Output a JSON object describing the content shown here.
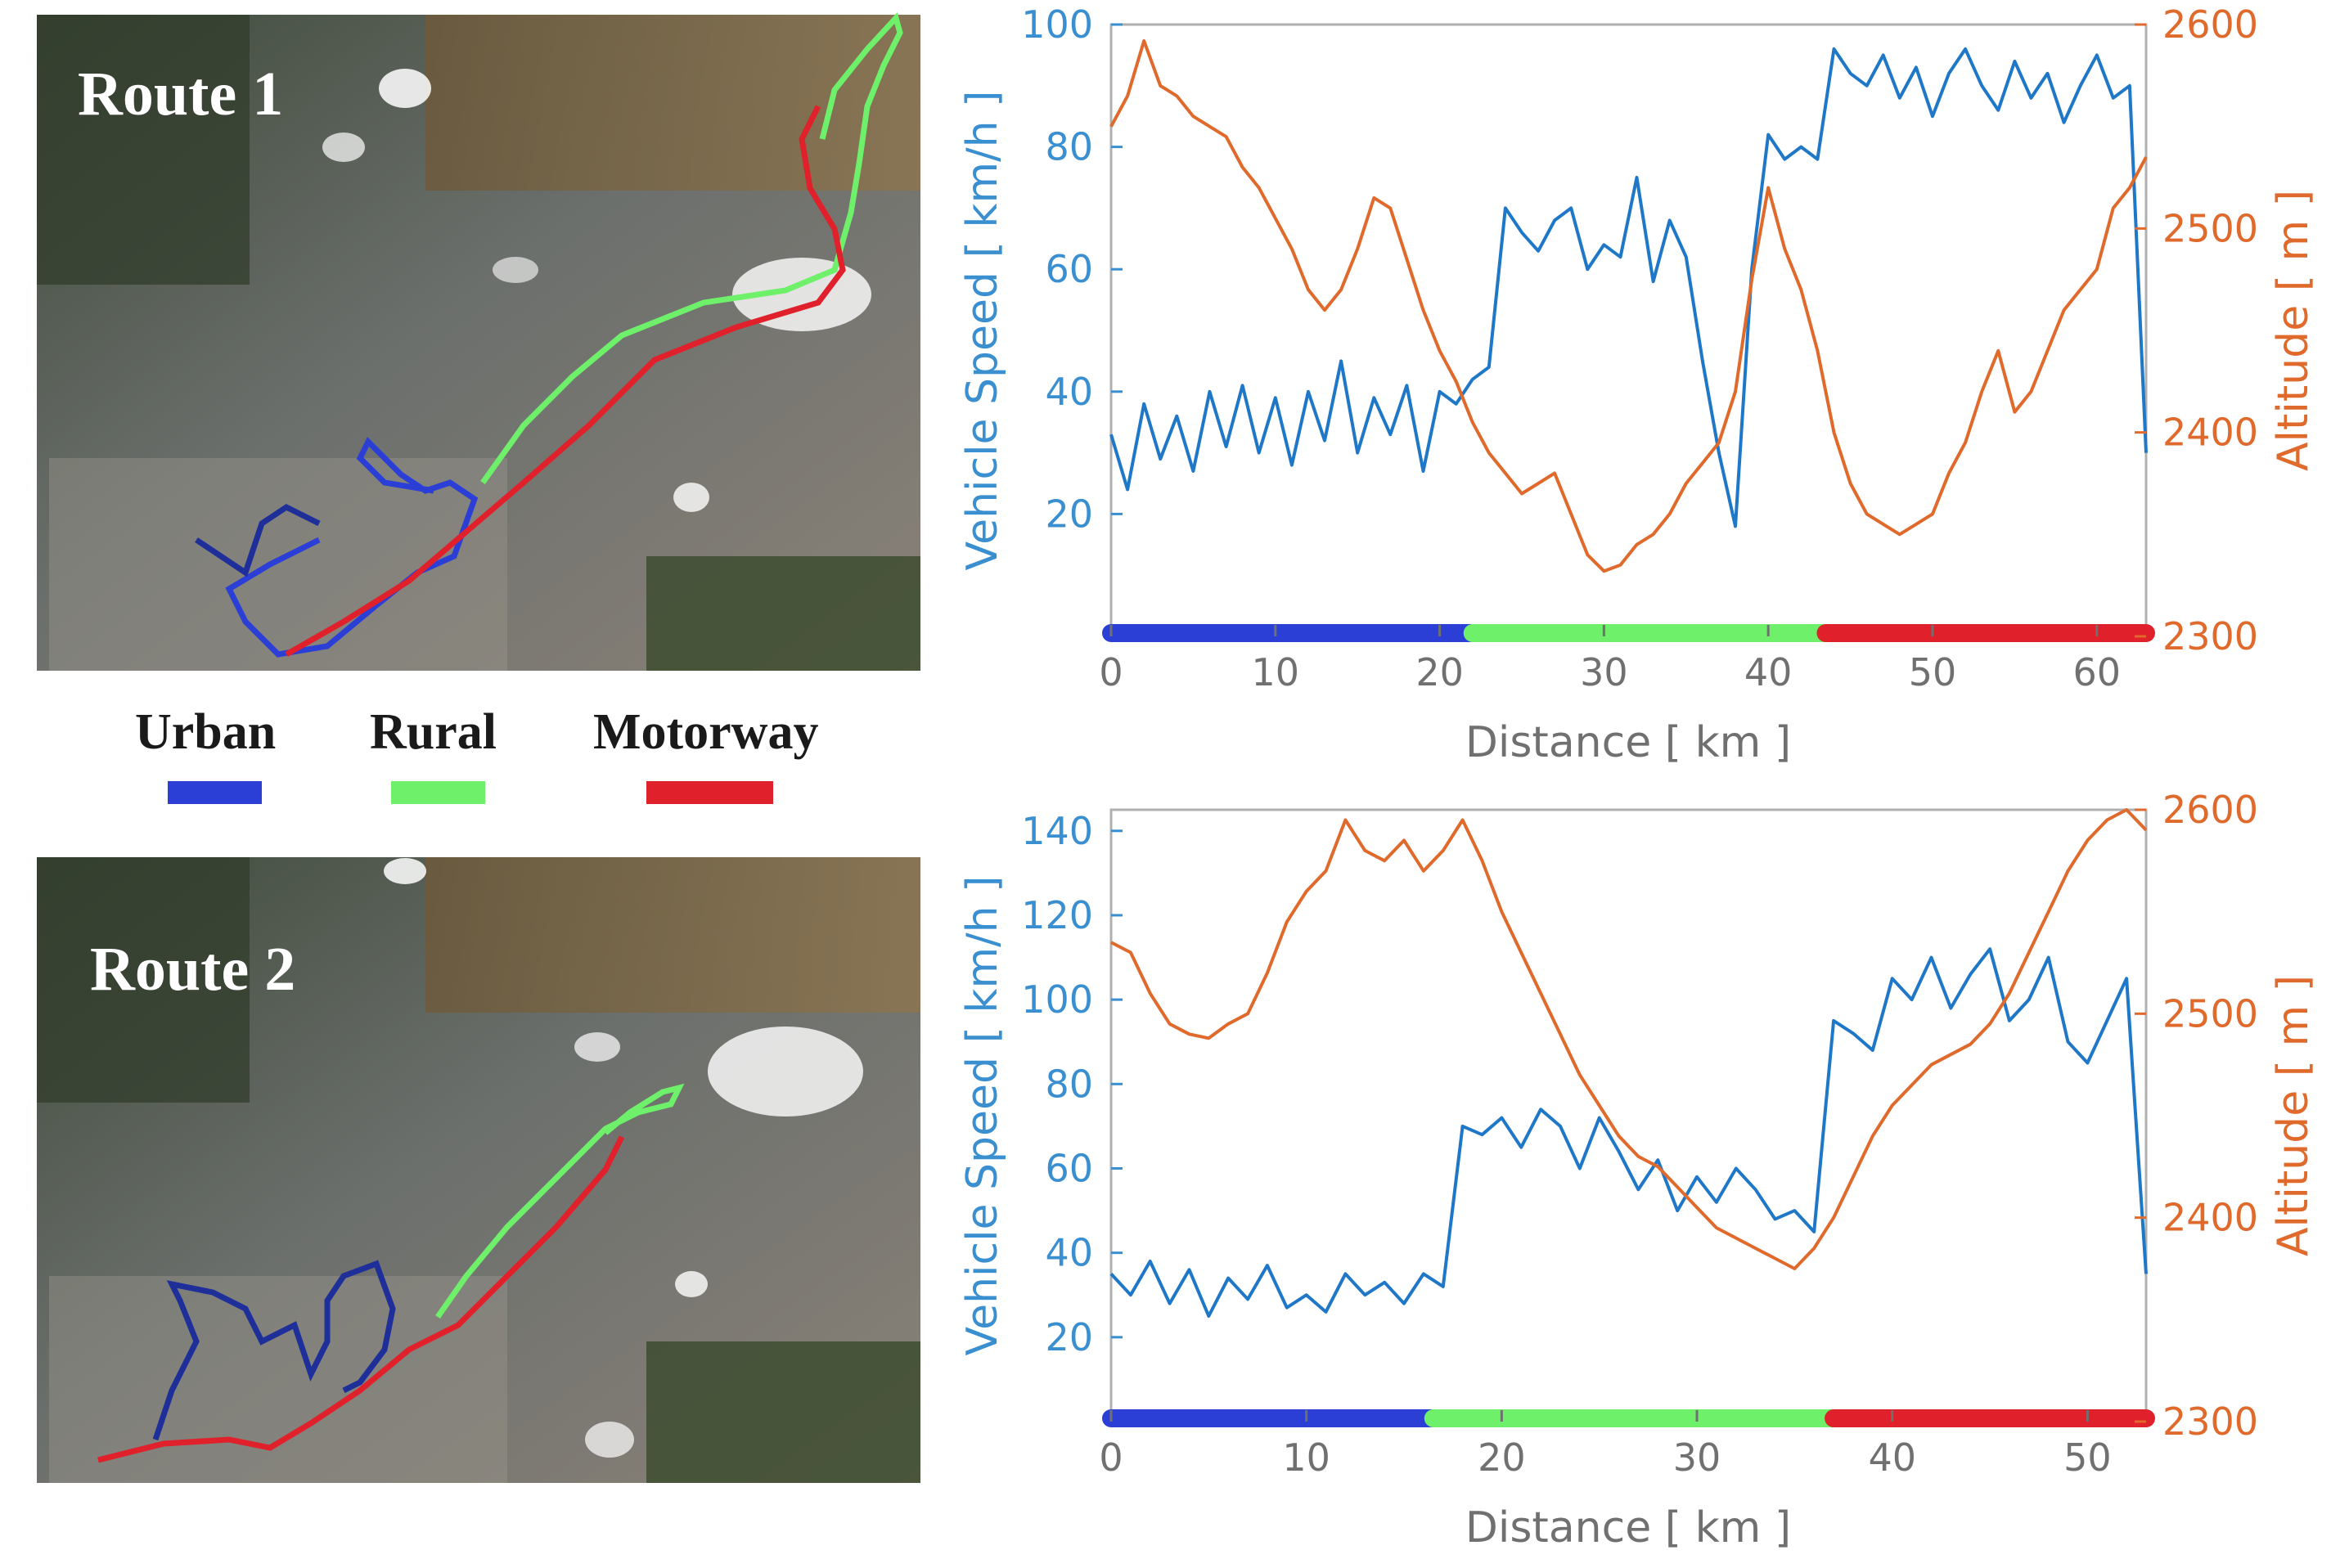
{
  "legend": {
    "items": [
      {
        "label": "Urban",
        "color": "#2b3fd6"
      },
      {
        "label": "Rural",
        "color": "#6ef06a"
      },
      {
        "label": "Motorway",
        "color": "#e0202a"
      }
    ]
  },
  "maps": [
    {
      "label": "Route 1"
    },
    {
      "label": "Route 2"
    }
  ],
  "colors": {
    "speed": "#1f77c8",
    "altitude": "#e06a2c",
    "urban": "#2b3fd6",
    "rural": "#6ef06a",
    "motorway": "#e0202a"
  },
  "chart_data": [
    {
      "type": "line",
      "xlabel": "Distance [ km ]",
      "ylabel_left": "Vehicle Speed [ km/h ]",
      "ylabel_right": "Altitude [ m ]",
      "xlim": [
        0,
        63
      ],
      "ylim_left": [
        0,
        100
      ],
      "ylim_right": [
        2300,
        2600
      ],
      "xticks": [
        "0",
        "10",
        "20",
        "30",
        "40",
        "50",
        "60"
      ],
      "yticks_left": [
        "20",
        "40",
        "60",
        "80",
        "100"
      ],
      "yticks_right": [
        "2300",
        "2400",
        "2500",
        "2600"
      ],
      "segments": [
        {
          "name": "Urban",
          "from": 0,
          "to": 22
        },
        {
          "name": "Rural",
          "from": 22,
          "to": 43.5
        },
        {
          "name": "Motorway",
          "from": 43.5,
          "to": 63
        }
      ],
      "series": [
        {
          "name": "Vehicle Speed",
          "axis": "left",
          "x": [
            0,
            1,
            2,
            3,
            4,
            5,
            6,
            7,
            8,
            9,
            10,
            11,
            12,
            13,
            14,
            15,
            16,
            17,
            18,
            19,
            20,
            21,
            22,
            23,
            24,
            25,
            26,
            27,
            28,
            29,
            30,
            31,
            32,
            33,
            34,
            35,
            36,
            37,
            38,
            39,
            40,
            41,
            42,
            43,
            44,
            45,
            46,
            47,
            48,
            49,
            50,
            51,
            52,
            53,
            54,
            55,
            56,
            57,
            58,
            59,
            60,
            61,
            62,
            63
          ],
          "values": [
            33,
            24,
            38,
            29,
            36,
            27,
            40,
            31,
            41,
            30,
            39,
            28,
            40,
            32,
            45,
            30,
            39,
            33,
            41,
            27,
            40,
            38,
            42,
            44,
            70,
            66,
            63,
            68,
            70,
            60,
            64,
            62,
            75,
            58,
            68,
            62,
            45,
            30,
            18,
            60,
            82,
            78,
            80,
            78,
            96,
            92,
            90,
            95,
            88,
            93,
            85,
            92,
            96,
            90,
            86,
            94,
            88,
            92,
            84,
            90,
            95,
            88,
            90,
            30
          ]
        },
        {
          "name": "Altitude",
          "axis": "right",
          "x": [
            0,
            1,
            2,
            3,
            4,
            5,
            6,
            7,
            8,
            9,
            10,
            11,
            12,
            13,
            14,
            15,
            16,
            17,
            18,
            19,
            20,
            21,
            22,
            23,
            24,
            25,
            26,
            27,
            28,
            29,
            30,
            31,
            32,
            33,
            34,
            35,
            36,
            37,
            38,
            39,
            40,
            41,
            42,
            43,
            44,
            45,
            46,
            47,
            48,
            49,
            50,
            51,
            52,
            53,
            54,
            55,
            56,
            57,
            58,
            59,
            60,
            61,
            62,
            63
          ],
          "values": [
            2550,
            2565,
            2592,
            2570,
            2565,
            2555,
            2550,
            2545,
            2530,
            2520,
            2505,
            2490,
            2470,
            2460,
            2470,
            2490,
            2515,
            2510,
            2485,
            2460,
            2440,
            2425,
            2405,
            2390,
            2380,
            2370,
            2375,
            2380,
            2360,
            2340,
            2332,
            2335,
            2345,
            2350,
            2360,
            2375,
            2385,
            2395,
            2420,
            2475,
            2520,
            2490,
            2470,
            2440,
            2400,
            2375,
            2360,
            2355,
            2350,
            2355,
            2360,
            2380,
            2395,
            2420,
            2440,
            2410,
            2420,
            2440,
            2460,
            2470,
            2480,
            2510,
            2520,
            2535
          ]
        }
      ]
    },
    {
      "type": "line",
      "xlabel": "Distance [ km ]",
      "ylabel_left": "Vehicle Speed [ km/h ]",
      "ylabel_right": "Altitude [ m ]",
      "xlim": [
        0,
        53
      ],
      "ylim_left": [
        0,
        145
      ],
      "ylim_right": [
        2300,
        2600
      ],
      "xticks": [
        "0",
        "10",
        "20",
        "30",
        "40",
        "50"
      ],
      "yticks_left": [
        "20",
        "40",
        "60",
        "80",
        "100",
        "120",
        "140"
      ],
      "yticks_right": [
        "2300",
        "2400",
        "2500",
        "2600"
      ],
      "segments": [
        {
          "name": "Urban",
          "from": 0,
          "to": 16.5
        },
        {
          "name": "Rural",
          "from": 16.5,
          "to": 37
        },
        {
          "name": "Motorway",
          "from": 37,
          "to": 53
        }
      ],
      "series": [
        {
          "name": "Vehicle Speed",
          "axis": "left",
          "x": [
            0,
            1,
            2,
            3,
            4,
            5,
            6,
            7,
            8,
            9,
            10,
            11,
            12,
            13,
            14,
            15,
            16,
            17,
            18,
            19,
            20,
            21,
            22,
            23,
            24,
            25,
            26,
            27,
            28,
            29,
            30,
            31,
            32,
            33,
            34,
            35,
            36,
            37,
            38,
            39,
            40,
            41,
            42,
            43,
            44,
            45,
            46,
            47,
            48,
            49,
            50,
            51,
            52,
            53
          ],
          "values": [
            35,
            30,
            38,
            28,
            36,
            25,
            34,
            29,
            37,
            27,
            30,
            26,
            35,
            30,
            33,
            28,
            35,
            32,
            70,
            68,
            72,
            65,
            74,
            70,
            60,
            72,
            64,
            55,
            62,
            50,
            58,
            52,
            60,
            55,
            48,
            50,
            45,
            95,
            92,
            88,
            105,
            100,
            110,
            98,
            106,
            112,
            95,
            100,
            110,
            90,
            85,
            95,
            105,
            35
          ]
        },
        {
          "name": "Altitude",
          "axis": "right",
          "x": [
            0,
            1,
            2,
            3,
            4,
            5,
            6,
            7,
            8,
            9,
            10,
            11,
            12,
            13,
            14,
            15,
            16,
            17,
            18,
            19,
            20,
            21,
            22,
            23,
            24,
            25,
            26,
            27,
            28,
            29,
            30,
            31,
            32,
            33,
            34,
            35,
            36,
            37,
            38,
            39,
            40,
            41,
            42,
            43,
            44,
            45,
            46,
            47,
            48,
            49,
            50,
            51,
            52,
            53
          ],
          "values": [
            2535,
            2530,
            2510,
            2495,
            2490,
            2488,
            2495,
            2500,
            2520,
            2545,
            2560,
            2570,
            2595,
            2580,
            2575,
            2585,
            2570,
            2580,
            2595,
            2575,
            2550,
            2530,
            2510,
            2490,
            2470,
            2455,
            2440,
            2430,
            2425,
            2415,
            2405,
            2395,
            2390,
            2385,
            2380,
            2375,
            2385,
            2400,
            2420,
            2440,
            2455,
            2465,
            2475,
            2480,
            2485,
            2495,
            2510,
            2530,
            2550,
            2570,
            2585,
            2595,
            2600,
            2590
          ]
        }
      ]
    }
  ]
}
